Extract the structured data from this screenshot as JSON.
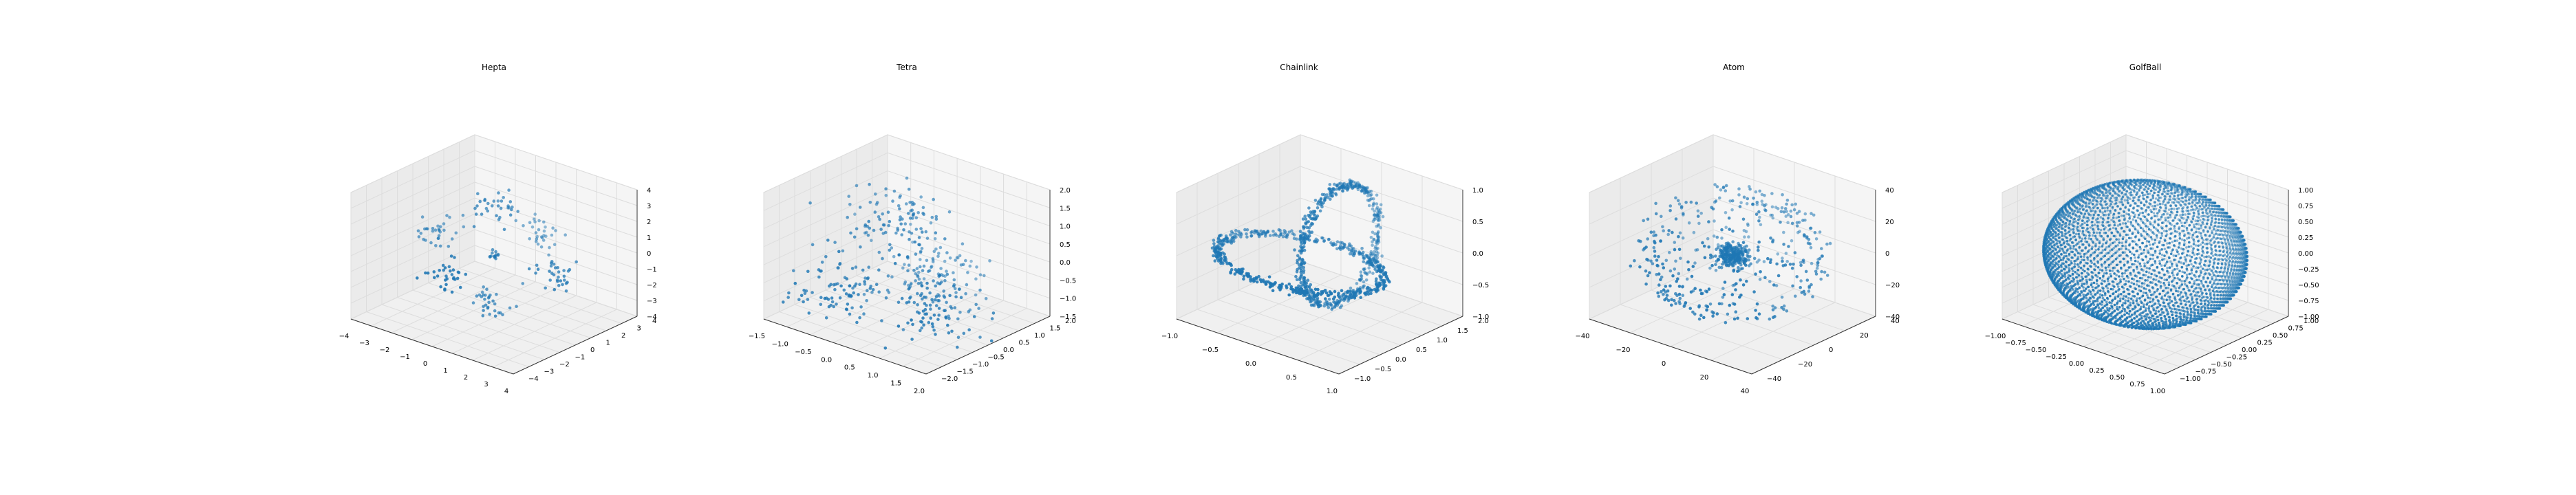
{
  "figure": {
    "colors": {
      "point": "#1f77b4",
      "pane": "#f0f0f0",
      "pane_edge": "#d9d9d9",
      "grid": "#dddddd",
      "axis": "#333333"
    }
  },
  "chart_data": [
    {
      "type": "scatter",
      "projection": "3d",
      "title": "Hepta",
      "grid": true,
      "x_ticks": [
        "−4",
        "−3",
        "−2",
        "−1",
        "0",
        "1",
        "2",
        "3",
        "4"
      ],
      "y_ticks": [
        "−4",
        "−3",
        "−2",
        "−1",
        "0",
        "1",
        "2",
        "3",
        "4"
      ],
      "z_ticks": [
        "−4",
        "−3",
        "−2",
        "−1",
        "0",
        "1",
        "2",
        "3",
        "4"
      ],
      "xlim": [
        -4,
        4
      ],
      "ylim": [
        -4,
        4
      ],
      "zlim": [
        -4,
        4
      ],
      "clusters": [
        {
          "center": [
            0,
            0,
            0
          ],
          "spread": 0.12,
          "count": 14
        },
        {
          "center": [
            3,
            0,
            0
          ],
          "spread": 0.45,
          "count": 32
        },
        {
          "center": [
            -3,
            0,
            0
          ],
          "spread": 0.45,
          "count": 32
        },
        {
          "center": [
            0,
            3,
            0
          ],
          "spread": 0.45,
          "count": 32
        },
        {
          "center": [
            0,
            -3,
            0
          ],
          "spread": 0.45,
          "count": 32
        },
        {
          "center": [
            0,
            0,
            3
          ],
          "spread": 0.45,
          "count": 32
        },
        {
          "center": [
            0,
            0,
            -3
          ],
          "spread": 0.45,
          "count": 32
        }
      ]
    },
    {
      "type": "scatter",
      "projection": "3d",
      "title": "Tetra",
      "grid": true,
      "x_ticks": [
        "−1.5",
        "−1.0",
        "−0.5",
        "0.0",
        "0.5",
        "1.0",
        "1.5",
        "2.0"
      ],
      "y_ticks": [
        "−2.0",
        "−1.5",
        "−1.0",
        "−0.5",
        "0.0",
        "0.5",
        "1.0",
        "1.5",
        "2.0"
      ],
      "z_ticks": [
        "−1.5",
        "−1.0",
        "−0.5",
        "0.0",
        "0.5",
        "1.0",
        "1.5",
        "2.0"
      ],
      "xlim": [
        -1.5,
        2.1
      ],
      "ylim": [
        -2.0,
        2.0
      ],
      "zlim": [
        -1.5,
        2.2
      ],
      "clusters": [
        {
          "center": [
            0.0,
            0.0,
            1.2
          ],
          "spread": 0.45,
          "count": 100
        },
        {
          "center": [
            -0.4,
            -0.9,
            -0.6
          ],
          "spread": 0.45,
          "count": 100
        },
        {
          "center": [
            1.2,
            -0.4,
            -0.7
          ],
          "spread": 0.45,
          "count": 100
        },
        {
          "center": [
            0.3,
            1.0,
            -0.5
          ],
          "spread": 0.45,
          "count": 100
        }
      ]
    },
    {
      "type": "scatter",
      "projection": "3d",
      "title": "Chainlink",
      "grid": true,
      "x_ticks": [
        "−1.0",
        "−0.5",
        "0.0",
        "0.5",
        "1.0"
      ],
      "y_ticks": [
        "−1.0",
        "−0.5",
        "0.0",
        "0.5",
        "1.0",
        "1.5",
        "2.0"
      ],
      "z_ticks": [
        "−1.0",
        "−0.5",
        "0.0",
        "0.5",
        "1.0"
      ],
      "xlim": [
        -1.1,
        1.1
      ],
      "ylim": [
        -1.1,
        2.1
      ],
      "zlim": [
        -1.1,
        1.1
      ],
      "rings": [
        {
          "plane": "xy",
          "center": [
            0,
            0,
            0
          ],
          "radius": 1.0,
          "noise": 0.07,
          "count": 500
        },
        {
          "plane": "yz",
          "center": [
            0,
            1,
            0
          ],
          "radius": 1.0,
          "noise": 0.07,
          "count": 500
        }
      ]
    },
    {
      "type": "scatter",
      "projection": "3d",
      "title": "Atom",
      "grid": true,
      "x_ticks": [
        "−40",
        "−20",
        "0",
        "20",
        "40"
      ],
      "y_ticks": [
        "−40",
        "−20",
        "0",
        "20",
        "40"
      ],
      "z_ticks": [
        "−40",
        "−20",
        "0",
        "20",
        "40"
      ],
      "xlim": [
        -50,
        50
      ],
      "ylim": [
        -50,
        50
      ],
      "zlim": [
        -50,
        50
      ],
      "core": {
        "center": [
          0,
          0,
          0
        ],
        "spread": 4,
        "count": 250
      },
      "shell": {
        "radius": 45,
        "noise": 2.5,
        "count": 400
      }
    },
    {
      "type": "scatter",
      "projection": "3d",
      "title": "GolfBall",
      "grid": true,
      "x_ticks": [
        "−1.00",
        "−0.75",
        "−0.50",
        "−0.25",
        "0.00",
        "0.25",
        "0.50",
        "0.75",
        "1.00"
      ],
      "y_ticks": [
        "−1.00",
        "−0.75",
        "−0.50",
        "−0.25",
        "0.00",
        "0.25",
        "0.50",
        "0.75",
        "1.00"
      ],
      "z_ticks": [
        "−1.00",
        "−0.75",
        "−0.50",
        "−0.25",
        "0.00",
        "0.25",
        "0.50",
        "0.75",
        "1.00"
      ],
      "xlim": [
        -1,
        1
      ],
      "ylim": [
        -1,
        1
      ],
      "zlim": [
        -1,
        1
      ],
      "sphere": {
        "radius": 1.0,
        "count": 4002
      }
    }
  ]
}
